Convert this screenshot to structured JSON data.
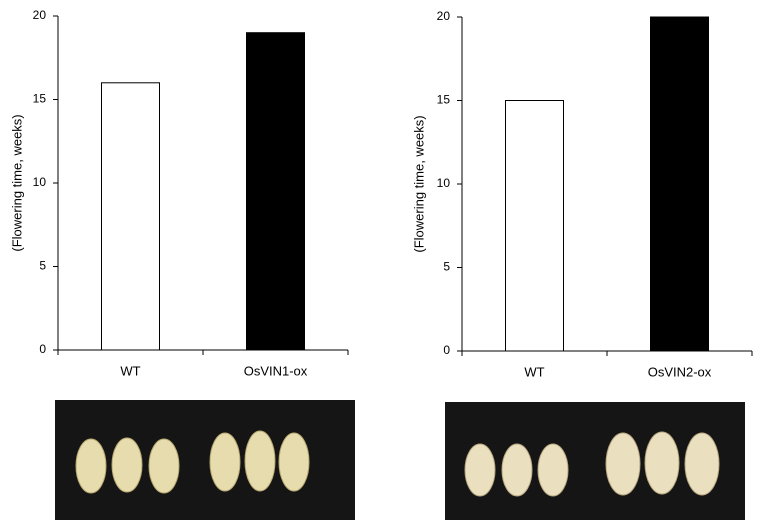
{
  "chart_data": [
    {
      "type": "bar",
      "y_label": "(Flowering time, weeks)",
      "categories": [
        "WT",
        "OsVIN1-ox"
      ],
      "values": [
        16,
        19
      ],
      "colors": [
        "#ffffff",
        "#000000"
      ],
      "ylim": [
        0,
        20
      ],
      "yticks": [
        0,
        5,
        10,
        15,
        20
      ]
    },
    {
      "type": "bar",
      "y_label": "(Flowering time, weeks)",
      "categories": [
        "WT",
        "OsVIN2-ox"
      ],
      "values": [
        15,
        20
      ],
      "colors": [
        "#ffffff",
        "#000000"
      ],
      "ylim": [
        0,
        20
      ],
      "yticks": [
        0,
        5,
        10,
        15,
        20
      ]
    }
  ]
}
